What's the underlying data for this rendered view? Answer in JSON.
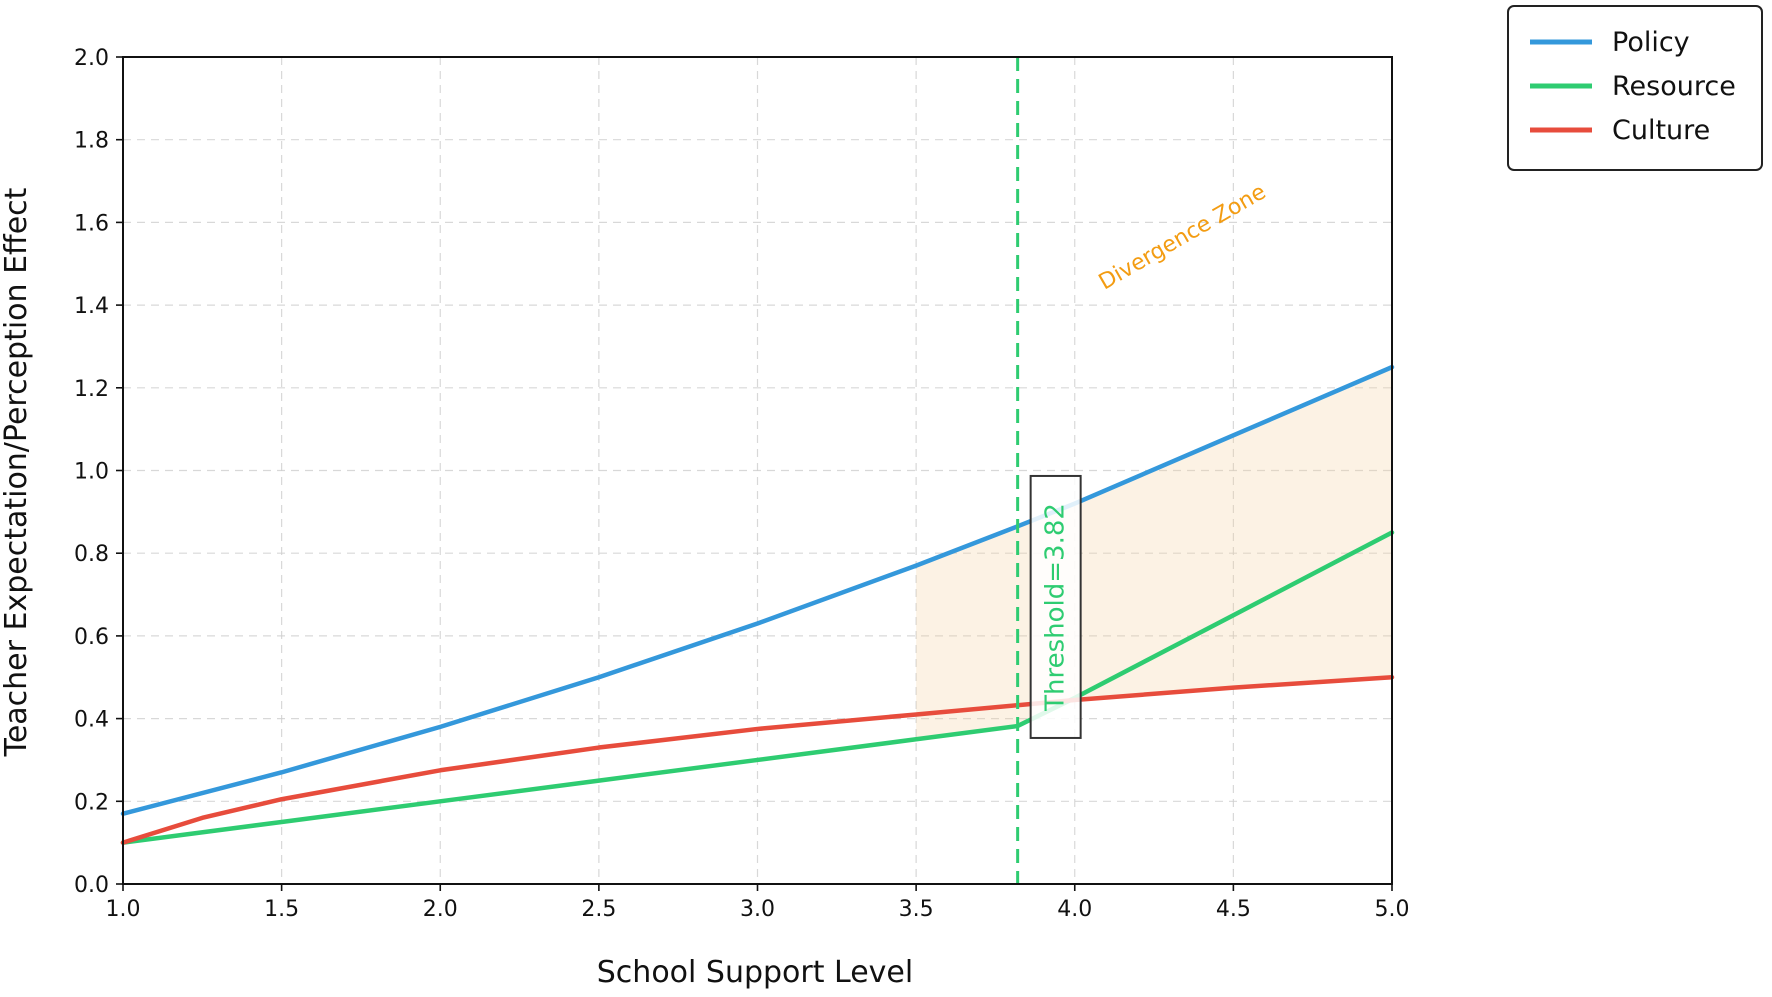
{
  "chart_data": {
    "type": "line",
    "xlabel": "School Support Level",
    "ylabel": "Teacher Expectation/Perception Effect",
    "xlim": [
      1.0,
      5.0
    ],
    "ylim": [
      0.0,
      2.0
    ],
    "x_ticks": [
      1.0,
      1.5,
      2.0,
      2.5,
      3.0,
      3.5,
      4.0,
      4.5,
      5.0
    ],
    "x_tick_labels": [
      "1.0",
      "1.5",
      "2.0",
      "2.5",
      "3.0",
      "3.5",
      "4.0",
      "4.5",
      "5.0"
    ],
    "y_ticks": [
      0.0,
      0.2,
      0.4,
      0.6,
      0.8,
      1.0,
      1.2,
      1.4,
      1.6,
      1.8,
      2.0
    ],
    "y_tick_labels": [
      "0.0",
      "0.2",
      "0.4",
      "0.6",
      "0.8",
      "1.0",
      "1.2",
      "1.4",
      "1.6",
      "1.8",
      "2.0"
    ],
    "grid": true,
    "legend_position": "outside top-right",
    "series": [
      {
        "name": "Policy",
        "color": "#3498db",
        "x": [
          1.0,
          1.5,
          2.0,
          2.5,
          3.0,
          3.5,
          3.82,
          4.0,
          4.5,
          5.0
        ],
        "y": [
          0.17,
          0.27,
          0.38,
          0.5,
          0.63,
          0.77,
          0.865,
          0.92,
          1.085,
          1.25
        ]
      },
      {
        "name": "Resource",
        "color": "#2ecc71",
        "x": [
          1.0,
          1.5,
          2.0,
          2.5,
          3.0,
          3.5,
          3.82,
          4.0,
          4.5,
          5.0
        ],
        "y": [
          0.1,
          0.15,
          0.2,
          0.25,
          0.3,
          0.35,
          0.382,
          0.45,
          0.65,
          0.85
        ]
      },
      {
        "name": "Culture",
        "color": "#e74c3c",
        "x": [
          1.0,
          1.25,
          1.5,
          2.0,
          2.5,
          3.0,
          3.5,
          4.0,
          4.5,
          5.0
        ],
        "y": [
          0.1,
          0.16,
          0.205,
          0.275,
          0.33,
          0.375,
          0.41,
          0.445,
          0.475,
          0.5
        ]
      }
    ],
    "threshold": {
      "x": 3.82,
      "label": "Threshold=3.82",
      "color": "#2ecc71",
      "label_y_center": 0.67
    },
    "shaded_region": {
      "x_start": 3.5,
      "x_end": 5.0,
      "color": "#f5cf9f",
      "label": "Divergence Zone",
      "label_color": "#f39c12",
      "label_x": 4.35,
      "label_y": 1.55
    }
  }
}
